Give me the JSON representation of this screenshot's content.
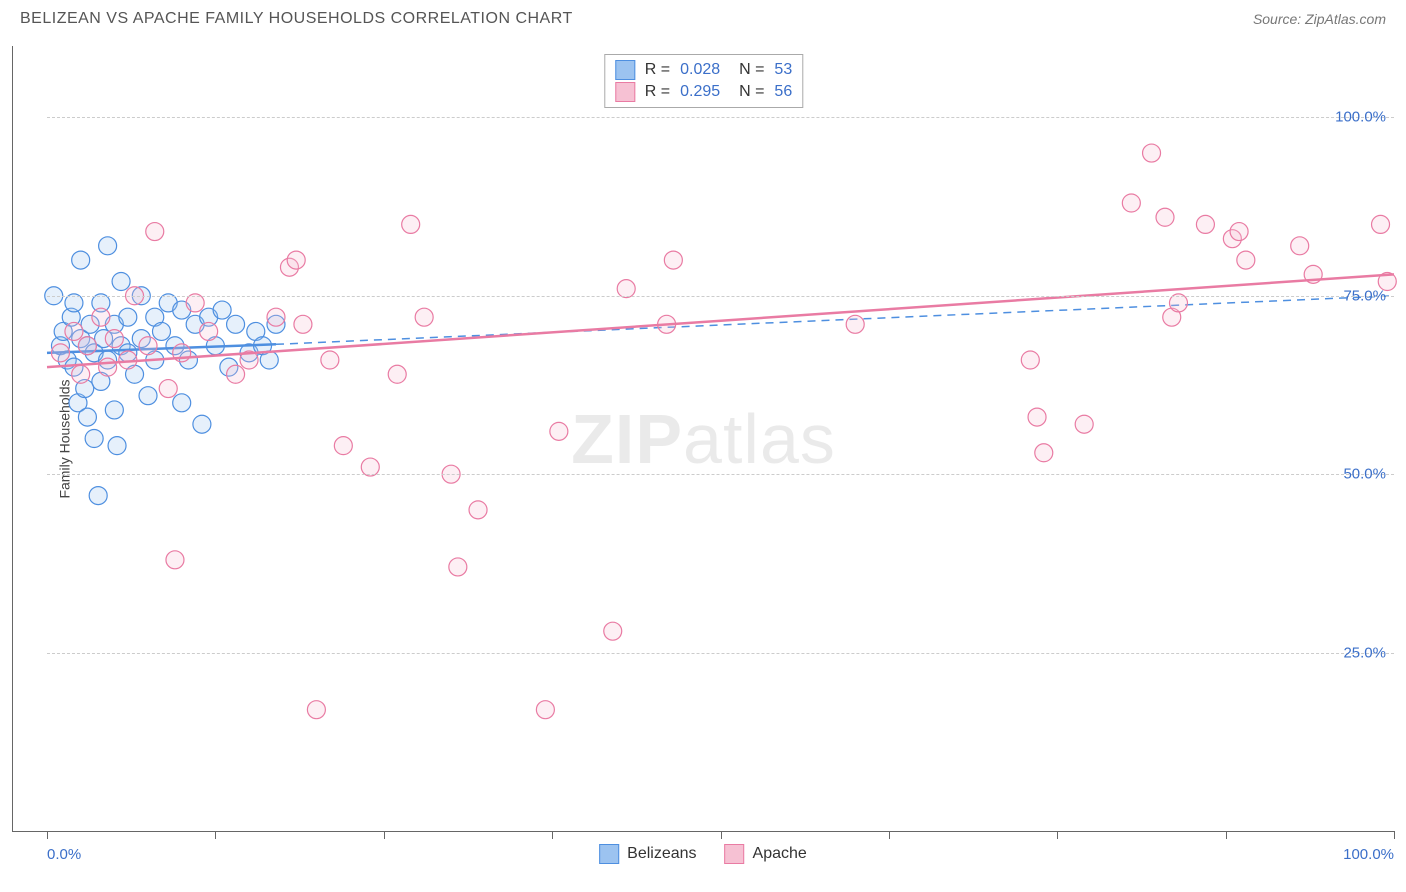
{
  "header": {
    "title": "BELIZEAN VS APACHE FAMILY HOUSEHOLDS CORRELATION CHART",
    "source": "Source: ZipAtlas.com"
  },
  "watermark": {
    "part1": "ZIP",
    "part2": "atlas"
  },
  "chart": {
    "type": "scatter",
    "y_label": "Family Households",
    "background_color": "#ffffff",
    "grid_color": "#cccccc",
    "axis_color": "#666666",
    "tick_label_color": "#3b6fc9",
    "xlim": [
      0,
      100
    ],
    "ylim": [
      0,
      110
    ],
    "y_ticks": [
      25,
      50,
      75,
      100
    ],
    "y_tick_labels": [
      "25.0%",
      "50.0%",
      "75.0%",
      "100.0%"
    ],
    "x_ticks": [
      0,
      12.5,
      25,
      37.5,
      50,
      62.5,
      75,
      87.5,
      100
    ],
    "x_axis_end_labels": {
      "left": "0.0%",
      "right": "100.0%"
    },
    "marker_radius": 9,
    "marker_stroke_width": 1.2,
    "marker_fill_opacity": 0.25,
    "series": [
      {
        "name": "Belizeans",
        "color_stroke": "#4e8fe0",
        "color_fill": "#9cc3f0",
        "R": "0.028",
        "N": "53",
        "trend": {
          "solid": [
            [
              0,
              67
            ],
            [
              17,
              68.2
            ]
          ],
          "dashed": [
            [
              17,
              68.2
            ],
            [
              100,
              75
            ]
          ],
          "width": 2.5
        },
        "points": [
          [
            0.5,
            75
          ],
          [
            1,
            68
          ],
          [
            1.2,
            70
          ],
          [
            1.5,
            66
          ],
          [
            1.8,
            72
          ],
          [
            2,
            74
          ],
          [
            2,
            65
          ],
          [
            2.3,
            60
          ],
          [
            2.5,
            69
          ],
          [
            2.5,
            80
          ],
          [
            2.8,
            62
          ],
          [
            3,
            68
          ],
          [
            3,
            58
          ],
          [
            3.2,
            71
          ],
          [
            3.5,
            67
          ],
          [
            3.5,
            55
          ],
          [
            3.8,
            47
          ],
          [
            4,
            63
          ],
          [
            4,
            74
          ],
          [
            4.2,
            69
          ],
          [
            4.5,
            82
          ],
          [
            4.5,
            66
          ],
          [
            5,
            59
          ],
          [
            5,
            71
          ],
          [
            5.2,
            54
          ],
          [
            5.5,
            68
          ],
          [
            5.5,
            77
          ],
          [
            6,
            67
          ],
          [
            6,
            72
          ],
          [
            6.5,
            64
          ],
          [
            7,
            75
          ],
          [
            7,
            69
          ],
          [
            7.5,
            61
          ],
          [
            8,
            72
          ],
          [
            8,
            66
          ],
          [
            8.5,
            70
          ],
          [
            9,
            74
          ],
          [
            9.5,
            68
          ],
          [
            10,
            73
          ],
          [
            10,
            60
          ],
          [
            10.5,
            66
          ],
          [
            11,
            71
          ],
          [
            11.5,
            57
          ],
          [
            12,
            72
          ],
          [
            12.5,
            68
          ],
          [
            13,
            73
          ],
          [
            13.5,
            65
          ],
          [
            14,
            71
          ],
          [
            15,
            67
          ],
          [
            15.5,
            70
          ],
          [
            16,
            68
          ],
          [
            16.5,
            66
          ],
          [
            17,
            71
          ]
        ]
      },
      {
        "name": "Apache",
        "color_stroke": "#e97ba3",
        "color_fill": "#f6c1d3",
        "R": "0.295",
        "N": "56",
        "trend": {
          "solid": [
            [
              0,
              65
            ],
            [
              100,
              78
            ]
          ],
          "width": 2.5
        },
        "points": [
          [
            1,
            67
          ],
          [
            2,
            70
          ],
          [
            2.5,
            64
          ],
          [
            3,
            68
          ],
          [
            4,
            72
          ],
          [
            4.5,
            65
          ],
          [
            5,
            69
          ],
          [
            6,
            66
          ],
          [
            6.5,
            75
          ],
          [
            7.5,
            68
          ],
          [
            8,
            84
          ],
          [
            9,
            62
          ],
          [
            9.5,
            38
          ],
          [
            10,
            67
          ],
          [
            11,
            74
          ],
          [
            12,
            70
          ],
          [
            14,
            64
          ],
          [
            15,
            66
          ],
          [
            17,
            72
          ],
          [
            18,
            79
          ],
          [
            18.5,
            80
          ],
          [
            19,
            71
          ],
          [
            20,
            17
          ],
          [
            21,
            66
          ],
          [
            22,
            54
          ],
          [
            24,
            51
          ],
          [
            26,
            64
          ],
          [
            27,
            85
          ],
          [
            28,
            72
          ],
          [
            30,
            50
          ],
          [
            30.5,
            37
          ],
          [
            32,
            45
          ],
          [
            37,
            17
          ],
          [
            38,
            56
          ],
          [
            42,
            28
          ],
          [
            43,
            76
          ],
          [
            46,
            71
          ],
          [
            46.5,
            80
          ],
          [
            60,
            71
          ],
          [
            73,
            66
          ],
          [
            73.5,
            58
          ],
          [
            74,
            53
          ],
          [
            77,
            57
          ],
          [
            80.5,
            88
          ],
          [
            82,
            95
          ],
          [
            83,
            86
          ],
          [
            83.5,
            72
          ],
          [
            84,
            74
          ],
          [
            86,
            85
          ],
          [
            88,
            83
          ],
          [
            88.5,
            84
          ],
          [
            89,
            80
          ],
          [
            93,
            82
          ],
          [
            94,
            78
          ],
          [
            99,
            85
          ],
          [
            99.5,
            77
          ]
        ]
      }
    ]
  },
  "legend": {
    "items": [
      {
        "label": "Belizeans",
        "swatch_fill": "#9cc3f0",
        "swatch_stroke": "#4e8fe0"
      },
      {
        "label": "Apache",
        "swatch_fill": "#f6c1d3",
        "swatch_stroke": "#e97ba3"
      }
    ]
  }
}
